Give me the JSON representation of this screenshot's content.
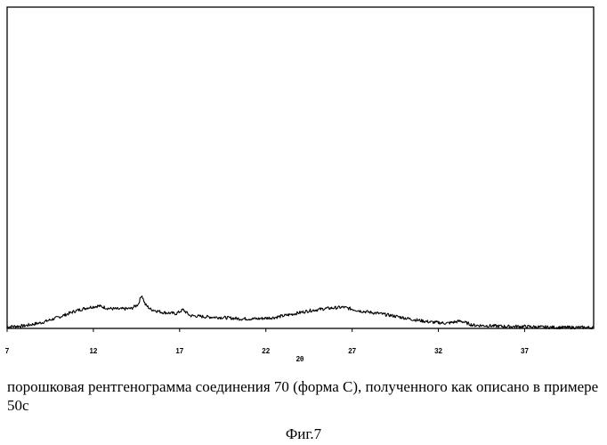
{
  "chart_data": {
    "type": "line",
    "title": "",
    "xlabel": "2θ",
    "ylabel": "",
    "xlim": [
      7,
      41
    ],
    "ylim": [
      0,
      100
    ],
    "xticks": [
      7,
      12,
      17,
      22,
      27,
      32,
      37
    ],
    "grid": false,
    "series": [
      {
        "x": [
          7,
          8,
          9,
          10,
          11,
          11.7,
          12.3,
          12.9,
          13.5,
          14.2,
          14.6,
          14.8,
          15.0,
          15.3,
          16,
          16.8,
          17.2,
          17.6,
          18.5,
          19.5,
          20.5,
          21.5,
          22.5,
          23.5,
          24.5,
          25.5,
          26.5,
          27,
          27.5,
          28.5,
          29.5,
          30.5,
          31.5,
          32.5,
          33.3,
          34,
          35,
          36,
          37,
          38,
          39,
          40,
          41
        ],
        "y": [
          0.5,
          0.8,
          1.8,
          3.5,
          5.5,
          6.5,
          7.0,
          6.2,
          6.0,
          6.2,
          7.5,
          10.5,
          7.5,
          6.0,
          5.0,
          4.6,
          5.8,
          4.0,
          3.6,
          3.4,
          3.0,
          3.0,
          3.4,
          4.4,
          5.5,
          6.2,
          6.6,
          6.0,
          5.4,
          4.7,
          3.8,
          2.8,
          2.0,
          1.6,
          2.3,
          1.0,
          0.8,
          0.6,
          0.6,
          0.4,
          0.3,
          0.3,
          0.3
        ]
      }
    ]
  },
  "caption": "порошковая рентгенограмма соединения 70 (форма С), полученного как описано в примере 50с",
  "figure_label": "Фиг.7"
}
